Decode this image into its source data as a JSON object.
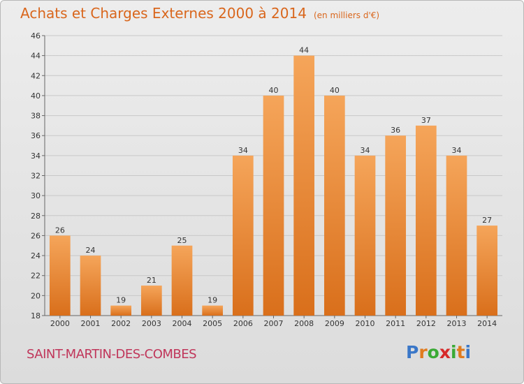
{
  "title": "Achats et Charges Externes 2000 à 2014",
  "unit": "(en milliers d'€)",
  "commune": "SAINT-MARTIN-DES-COMBES",
  "logo": {
    "text": "Proxiti",
    "letter_colors": [
      "#3a77c8",
      "#e07b1e",
      "#3aaa35",
      "#d62a2a",
      "#3aaa35",
      "#e07b1e",
      "#3a77c8"
    ]
  },
  "colors": {
    "bar_light": "#f5a55a",
    "bar_dark": "#d96f1b",
    "title": "#d9661c",
    "commune": "#c0365a"
  },
  "chart_data": {
    "type": "bar",
    "title": "Achats et Charges Externes 2000 à 2014",
    "subtitle": "(en milliers d'€)",
    "categories": [
      "2000",
      "2001",
      "2002",
      "2003",
      "2004",
      "2005",
      "2006",
      "2007",
      "2008",
      "2009",
      "2010",
      "2011",
      "2012",
      "2013",
      "2014"
    ],
    "values": [
      26,
      24,
      19,
      21,
      25,
      19,
      34,
      40,
      44,
      40,
      34,
      36,
      37,
      34,
      27
    ],
    "ylim": [
      18,
      46
    ],
    "yticks": [
      18,
      20,
      22,
      24,
      26,
      28,
      30,
      32,
      34,
      36,
      38,
      40,
      42,
      44,
      46
    ],
    "grid": true,
    "xlabel": "",
    "ylabel": ""
  }
}
